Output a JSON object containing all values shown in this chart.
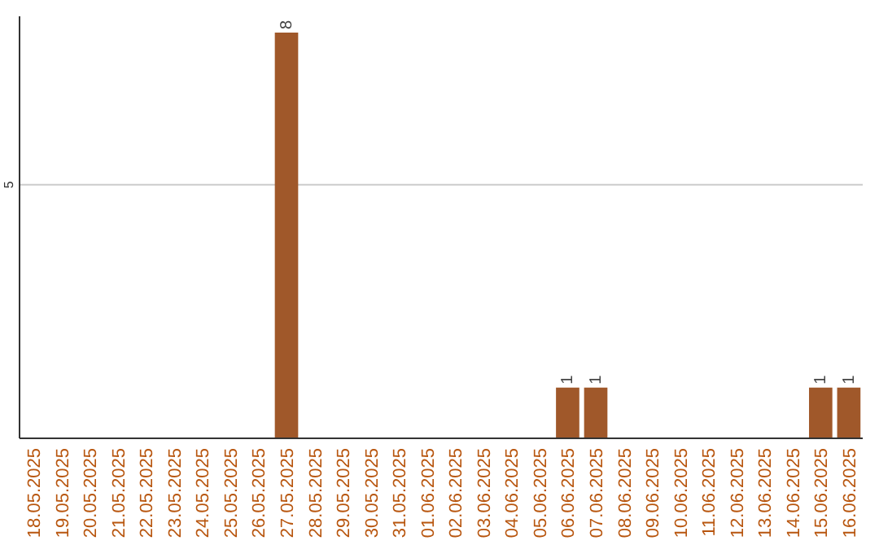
{
  "chart_data": {
    "type": "bar",
    "categories": [
      "18.05.2025",
      "19.05.2025",
      "20.05.2025",
      "21.05.2025",
      "22.05.2025",
      "23.05.2025",
      "24.05.2025",
      "25.05.2025",
      "26.05.2025",
      "27.05.2025",
      "28.05.2025",
      "29.05.2025",
      "30.05.2025",
      "31.05.2025",
      "01.06.2025",
      "02.06.2025",
      "03.06.2025",
      "04.06.2025",
      "05.06.2025",
      "06.06.2025",
      "07.06.2025",
      "08.06.2025",
      "09.06.2025",
      "10.06.2025",
      "11.06.2025",
      "12.06.2025",
      "13.06.2025",
      "14.06.2025",
      "15.06.2025",
      "16.06.2025"
    ],
    "values": [
      0,
      0,
      0,
      0,
      0,
      0,
      0,
      0,
      0,
      8,
      0,
      0,
      0,
      0,
      0,
      0,
      0,
      0,
      0,
      1,
      1,
      0,
      0,
      0,
      0,
      0,
      0,
      0,
      1,
      1
    ],
    "value_labels": [
      null,
      null,
      null,
      null,
      null,
      null,
      null,
      null,
      null,
      "8",
      null,
      null,
      null,
      null,
      null,
      null,
      null,
      null,
      null,
      "1",
      "1",
      null,
      null,
      null,
      null,
      null,
      null,
      null,
      "1",
      "1"
    ],
    "color": "#a0582a",
    "ylim": [
      0,
      8
    ],
    "yticks": [
      5
    ],
    "grid": "y"
  }
}
